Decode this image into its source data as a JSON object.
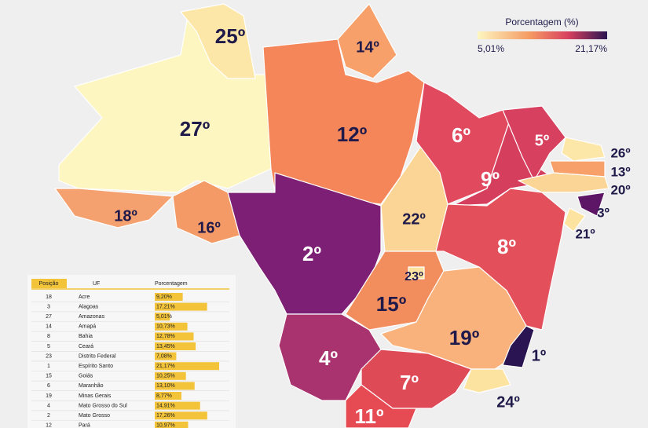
{
  "legend": {
    "title": "Porcentagem (%)",
    "min_label": "5,01%",
    "max_label": "21,17%"
  },
  "map_labels": [
    "25º",
    "14º",
    "27º",
    "12º",
    "6º",
    "5º",
    "26º",
    "13º",
    "20º",
    "3º",
    "21º",
    "9º",
    "18º",
    "16º",
    "22º",
    "2º",
    "8º",
    "23º",
    "15º",
    "19º",
    "1º",
    "4º",
    "7º",
    "24º",
    "11º"
  ],
  "table": {
    "headers": [
      "Posição",
      "UF",
      "Porcentagem"
    ],
    "scale_max": 21.17,
    "rows": [
      {
        "position": "18",
        "uf": "Acre",
        "value": 9.2,
        "label": "9,20%"
      },
      {
        "position": "3",
        "uf": "Alagoas",
        "value": 17.21,
        "label": "17,21%"
      },
      {
        "position": "27",
        "uf": "Amazonas",
        "value": 5.01,
        "label": "5,01%"
      },
      {
        "position": "14",
        "uf": "Amapá",
        "value": 10.73,
        "label": "10,73%"
      },
      {
        "position": "8",
        "uf": "Bahia",
        "value": 12.78,
        "label": "12,78%"
      },
      {
        "position": "5",
        "uf": "Ceará",
        "value": 13.45,
        "label": "13,45%"
      },
      {
        "position": "23",
        "uf": "Distrito Federal",
        "value": 7.08,
        "label": "7,08%"
      },
      {
        "position": "1",
        "uf": "Espírito Santo",
        "value": 21.17,
        "label": "21,17%"
      },
      {
        "position": "15",
        "uf": "Goiás",
        "value": 10.25,
        "label": "10,25%"
      },
      {
        "position": "6",
        "uf": "Maranhão",
        "value": 13.1,
        "label": "13,10%"
      },
      {
        "position": "19",
        "uf": "Minas Gerais",
        "value": 8.77,
        "label": "8,77%"
      },
      {
        "position": "4",
        "uf": "Mato Grosso do Sul",
        "value": 14.91,
        "label": "14,91%"
      },
      {
        "position": "2",
        "uf": "Mato Grosso",
        "value": 17.26,
        "label": "17,26%"
      },
      {
        "position": "12",
        "uf": "Pará",
        "value": 10.97,
        "label": "10,97%"
      }
    ]
  }
}
